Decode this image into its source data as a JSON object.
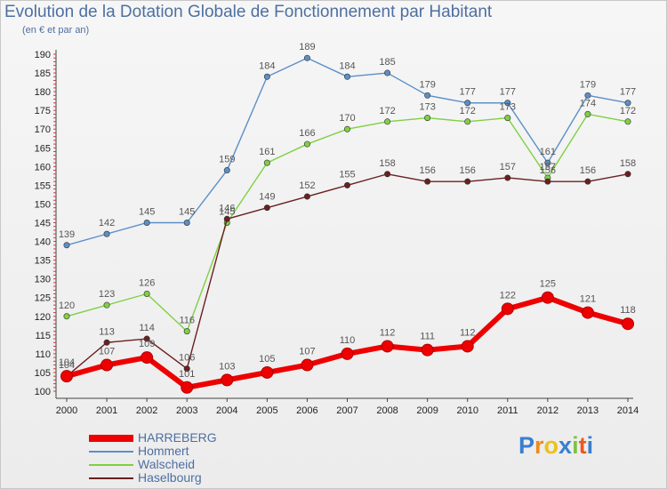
{
  "header": {
    "title": "Evolution de la Dotation Globale de Fonctionnement par Habitant",
    "subtitle": "(en € et par an)"
  },
  "chart_data": {
    "type": "line",
    "title": "Evolution de la Dotation Globale de Fonctionnement par Habitant",
    "subtitle": "(en € et par an)",
    "xlabel": "",
    "ylabel": "",
    "x": [
      2000,
      2001,
      2002,
      2003,
      2004,
      2005,
      2006,
      2007,
      2008,
      2009,
      2010,
      2011,
      2012,
      2013,
      2014
    ],
    "ylim": [
      100,
      190
    ],
    "yticks": [
      100,
      105,
      110,
      115,
      120,
      125,
      130,
      135,
      140,
      145,
      150,
      155,
      160,
      165,
      170,
      175,
      180,
      185,
      190
    ],
    "grid": false,
    "legend_position": "bottom-left",
    "series": [
      {
        "name": "HARREBERG",
        "color": "#ee0000",
        "values": [
          104,
          107,
          109,
          101,
          103,
          105,
          107,
          110,
          112,
          111,
          112,
          122,
          125,
          121,
          118
        ]
      },
      {
        "name": "Hommert",
        "color": "#5b8fc7",
        "values": [
          139,
          142,
          145,
          145,
          159,
          184,
          189,
          184,
          185,
          179,
          177,
          177,
          161,
          179,
          177
        ]
      },
      {
        "name": "Walscheid",
        "color": "#7fd042",
        "values": [
          120,
          123,
          126,
          116,
          145,
          161,
          166,
          170,
          172,
          173,
          172,
          173,
          157,
          174,
          172
        ]
      },
      {
        "name": "Haselbourg",
        "color": "#6b1f1f",
        "values": [
          104,
          113,
          114,
          106,
          146,
          149,
          152,
          155,
          158,
          156,
          156,
          157,
          156,
          156,
          158
        ]
      }
    ]
  },
  "logo": {
    "text": "Proxiti",
    "letters": [
      "P",
      "r",
      "o",
      "x",
      "i",
      "t",
      "i"
    ]
  }
}
